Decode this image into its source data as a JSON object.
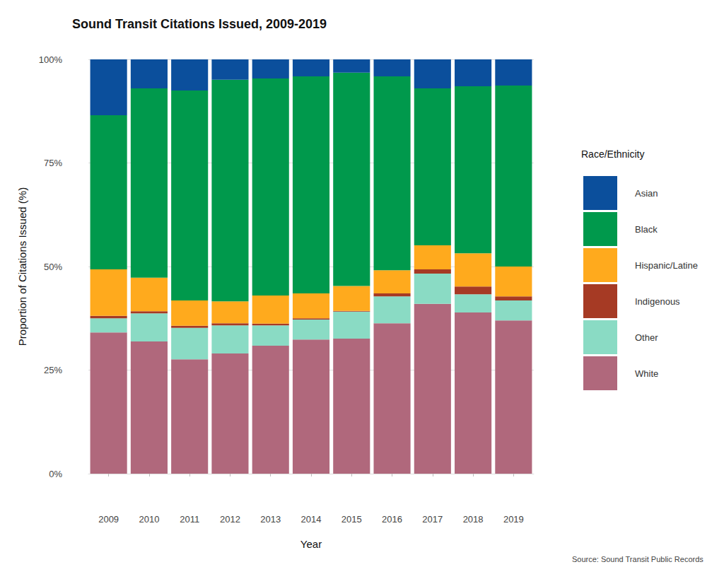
{
  "chart_data": {
    "type": "bar",
    "title": "Sound Transit Citations Issued, 2009-2019",
    "x_label": "Year",
    "y_label": "Proportion of Citations Issued (%)",
    "legend_title": "Race/Ethnicity",
    "annotation": "Source: Sound Transit Public Records",
    "categories": [
      "2009",
      "2010",
      "2011",
      "2012",
      "2013",
      "2014",
      "2015",
      "2016",
      "2017",
      "2018",
      "2019"
    ],
    "series": [
      {
        "name": "Asian",
        "color": "#0b4f9c",
        "values": [
          13.5,
          7.0,
          7.5,
          4.9,
          4.6,
          4.1,
          3.2,
          4.1,
          7.0,
          6.5,
          6.3
        ]
      },
      {
        "name": "Black",
        "color": "#00994c",
        "values": [
          37.2,
          45.7,
          50.7,
          53.5,
          52.4,
          52.4,
          51.5,
          46.8,
          37.9,
          40.3,
          43.7
        ]
      },
      {
        "name": "Hispanic/Latine",
        "color": "#ffaa1d",
        "values": [
          11.2,
          8.1,
          6.1,
          5.3,
          6.8,
          6.0,
          6.0,
          5.6,
          5.8,
          8.0,
          7.2
        ]
      },
      {
        "name": "Indigenous",
        "color": "#a63a24",
        "values": [
          0.6,
          0.5,
          0.5,
          0.5,
          0.4,
          0.3,
          0.2,
          0.7,
          1.0,
          1.9,
          1.0
        ]
      },
      {
        "name": "Other",
        "color": "#8adbc4",
        "values": [
          3.4,
          6.8,
          7.6,
          6.8,
          4.9,
          4.8,
          6.5,
          6.5,
          7.3,
          4.4,
          4.8
        ]
      },
      {
        "name": "White",
        "color": "#b0687c",
        "values": [
          34.1,
          31.9,
          27.6,
          29.0,
          30.9,
          32.4,
          32.6,
          36.3,
          41.0,
          38.9,
          37.0
        ]
      }
    ],
    "ylim": [
      0,
      100
    ],
    "yticks": [
      {
        "value": 0,
        "label": "0%"
      },
      {
        "value": 25,
        "label": "25%"
      },
      {
        "value": 50,
        "label": "50%"
      },
      {
        "value": 75,
        "label": "75%"
      },
      {
        "value": 100,
        "label": "100%"
      }
    ],
    "stacked": true,
    "grid": true,
    "legend": "right"
  }
}
